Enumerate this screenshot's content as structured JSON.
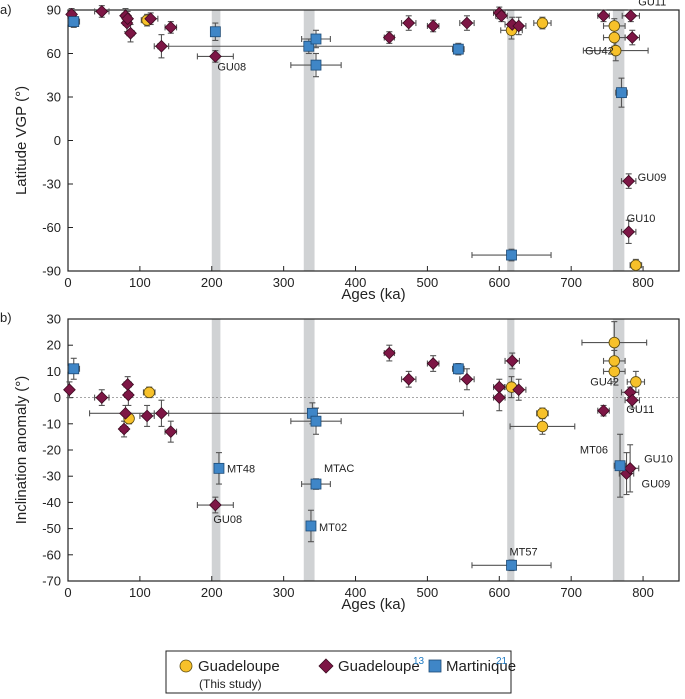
{
  "colors": {
    "guadeloupe_this": "#f7c12a",
    "guadeloupe_13": "#7d1645",
    "martinique": "#3f86c7",
    "errorbar": "#555555",
    "excursion_band": "#d0d2d4",
    "zero_line": "#888888"
  },
  "excursion_bands": [
    [
      200,
      212
    ],
    [
      328,
      343
    ],
    [
      611,
      621
    ],
    [
      758,
      774
    ]
  ],
  "legend": {
    "g_this": "Guadeloupe",
    "g_this_sub": "(This study)",
    "g13": "Guadeloupe",
    "g13_ref": "13",
    "mart": "Martinique",
    "mart_ref": "21"
  },
  "chart_data": [
    {
      "panel": "a)",
      "type": "scatter",
      "xlabel": "Ages (ka)",
      "ylabel": "Latitude VGP (°)",
      "xlim": [
        0,
        850
      ],
      "ylim": [
        -90,
        90
      ],
      "xticks": [
        0,
        100,
        200,
        300,
        400,
        500,
        600,
        700,
        800
      ],
      "yticks": [
        90,
        60,
        30,
        0,
        -30,
        -60,
        -90
      ],
      "series": [
        {
          "name": "Guadeloupe",
          "marker": "circle",
          "points": [
            {
              "x": 110,
              "y": 83,
              "xerr": 8,
              "yerr": 4
            },
            {
              "x": 617,
              "y": 76,
              "xerr": 15,
              "yerr": 6
            },
            {
              "x": 660,
              "y": 81,
              "xerr": 12,
              "yerr": 4
            },
            {
              "x": 760,
              "y": 79,
              "xerr": 15,
              "yerr": 5
            },
            {
              "x": 760,
              "y": 71,
              "xerr": 15,
              "yerr": 6
            },
            {
              "x": 762,
              "y": 62,
              "xerr": 45,
              "yerr": 7
            },
            {
              "x": 790,
              "y": -86,
              "xerr": 8,
              "yerr": 4
            }
          ]
        },
        {
          "name": "Guadeloupe",
          "marker": "diamond",
          "points": [
            {
              "x": 5,
              "y": 87,
              "xerr": 5,
              "yerr": 4
            },
            {
              "x": 47,
              "y": 89,
              "xerr": 10,
              "yerr": 4
            },
            {
              "x": 80,
              "y": 86,
              "xerr": 5,
              "yerr": 5
            },
            {
              "x": 82,
              "y": 81,
              "xerr": 5,
              "yerr": 6
            },
            {
              "x": 83,
              "y": 84,
              "xerr": 5,
              "yerr": 5
            },
            {
              "x": 87,
              "y": 74,
              "xerr": 5,
              "yerr": 6
            },
            {
              "x": 115,
              "y": 84,
              "xerr": 10,
              "yerr": 4
            },
            {
              "x": 130,
              "y": 65,
              "xerr": 10,
              "yerr": 8
            },
            {
              "x": 143,
              "y": 78,
              "xerr": 8,
              "yerr": 4
            },
            {
              "x": 205,
              "y": 58,
              "xerr": 25,
              "yerr": 4
            },
            {
              "x": 447,
              "y": 71,
              "xerr": 7,
              "yerr": 4
            },
            {
              "x": 474,
              "y": 81,
              "xerr": 10,
              "yerr": 5
            },
            {
              "x": 508,
              "y": 79,
              "xerr": 8,
              "yerr": 4
            },
            {
              "x": 555,
              "y": 81,
              "xerr": 10,
              "yerr": 5
            },
            {
              "x": 600,
              "y": 88,
              "xerr": 8,
              "yerr": 4
            },
            {
              "x": 603,
              "y": 86,
              "xerr": 8,
              "yerr": 4
            },
            {
              "x": 618,
              "y": 80,
              "xerr": 10,
              "yerr": 5
            },
            {
              "x": 627,
              "y": 79,
              "xerr": 10,
              "yerr": 6
            },
            {
              "x": 745,
              "y": 86,
              "xerr": 8,
              "yerr": 4
            },
            {
              "x": 780,
              "y": -28,
              "xerr": 10,
              "yerr": 5
            },
            {
              "x": 780,
              "y": -63,
              "xerr": 10,
              "yerr": 8
            },
            {
              "x": 783,
              "y": 86,
              "xerr": 12,
              "yerr": 4
            },
            {
              "x": 785,
              "y": 71,
              "xerr": 10,
              "yerr": 5
            }
          ]
        },
        {
          "name": "Martinique",
          "marker": "square",
          "points": [
            {
              "x": 8,
              "y": 82,
              "xerr": 8,
              "yerr": 4
            },
            {
              "x": 205,
              "y": 75,
              "xerr": 5,
              "yerr": 6
            },
            {
              "x": 335,
              "y": 65,
              "xerr": 210,
              "yerr": 5
            },
            {
              "x": 345,
              "y": 70,
              "xerr": 20,
              "yerr": 6
            },
            {
              "x": 345,
              "y": 52,
              "xerr": 35,
              "yerr": 8
            },
            {
              "x": 543,
              "y": 63,
              "xerr": 8,
              "yerr": 4
            },
            {
              "x": 617,
              "y": -79,
              "xerr": 55,
              "yerr": 4
            },
            {
              "x": 770,
              "y": 33,
              "xerr": 8,
              "yerr": 10
            }
          ]
        }
      ],
      "annotations": [
        {
          "text": "GU08",
          "x": 205,
          "y": 58
        },
        {
          "text": "GU11",
          "x": 785,
          "y": 71
        },
        {
          "text": "GU42",
          "x": 762,
          "y": 62
        },
        {
          "text": "GU09",
          "x": 780,
          "y": -28
        },
        {
          "text": "GU10",
          "x": 780,
          "y": -63
        }
      ]
    },
    {
      "panel": "b)",
      "type": "scatter",
      "xlabel": "Ages (ka)",
      "ylabel": "Inclination anomaly (°)",
      "xlim": [
        0,
        850
      ],
      "ylim": [
        -70,
        30
      ],
      "xticks": [
        0,
        100,
        200,
        300,
        400,
        500,
        600,
        700,
        800
      ],
      "yticks": [
        30,
        20,
        10,
        0,
        -10,
        -20,
        -30,
        -40,
        -50,
        -60,
        -70
      ],
      "series": [
        {
          "name": "Guadeloupe",
          "marker": "circle",
          "points": [
            {
              "x": 85,
              "y": -8,
              "xerr": 5,
              "yerr": 2
            },
            {
              "x": 113,
              "y": 2,
              "xerr": 8,
              "yerr": 2
            },
            {
              "x": 617,
              "y": 4,
              "xerr": 10,
              "yerr": 4
            },
            {
              "x": 660,
              "y": -6,
              "xerr": 8,
              "yerr": 2
            },
            {
              "x": 660,
              "y": -11,
              "xerr": 45,
              "yerr": 3
            },
            {
              "x": 760,
              "y": 21,
              "xerr": 45,
              "yerr": 8
            },
            {
              "x": 760,
              "y": 14,
              "xerr": 15,
              "yerr": 4
            },
            {
              "x": 760,
              "y": 10,
              "xerr": 15,
              "yerr": 4
            },
            {
              "x": 790,
              "y": 6,
              "xerr": 12,
              "yerr": 4
            }
          ]
        },
        {
          "name": "Guadeloupe",
          "marker": "diamond",
          "points": [
            {
              "x": 2,
              "y": 3,
              "xerr": 3,
              "yerr": 3
            },
            {
              "x": 47,
              "y": 0,
              "xerr": 10,
              "yerr": 3
            },
            {
              "x": 78,
              "y": -12,
              "xerr": 5,
              "yerr": 3
            },
            {
              "x": 80,
              "y": -6,
              "xerr": 50,
              "yerr": 3
            },
            {
              "x": 83,
              "y": 5,
              "xerr": 5,
              "yerr": 3
            },
            {
              "x": 84,
              "y": 1,
              "xerr": 5,
              "yerr": 4
            },
            {
              "x": 110,
              "y": -7,
              "xerr": 10,
              "yerr": 4
            },
            {
              "x": 130,
              "y": -6,
              "xerr": 10,
              "yerr": 5
            },
            {
              "x": 143,
              "y": -13,
              "xerr": 8,
              "yerr": 4
            },
            {
              "x": 205,
              "y": -41,
              "xerr": 25,
              "yerr": 3
            },
            {
              "x": 447,
              "y": 17,
              "xerr": 7,
              "yerr": 3
            },
            {
              "x": 474,
              "y": 7,
              "xerr": 10,
              "yerr": 3
            },
            {
              "x": 508,
              "y": 13,
              "xerr": 8,
              "yerr": 3
            },
            {
              "x": 555,
              "y": 7,
              "xerr": 10,
              "yerr": 4
            },
            {
              "x": 600,
              "y": 4,
              "xerr": 8,
              "yerr": 3
            },
            {
              "x": 600,
              "y": 0,
              "xerr": 8,
              "yerr": 5
            },
            {
              "x": 618,
              "y": 14,
              "xerr": 10,
              "yerr": 3
            },
            {
              "x": 627,
              "y": 3,
              "xerr": 10,
              "yerr": 4
            },
            {
              "x": 745,
              "y": -5,
              "xerr": 8,
              "yerr": 2
            },
            {
              "x": 782,
              "y": 2,
              "xerr": 12,
              "yerr": 2
            },
            {
              "x": 785,
              "y": -1,
              "xerr": 10,
              "yerr": 3
            },
            {
              "x": 777,
              "y": -29,
              "xerr": 10,
              "yerr": 8
            },
            {
              "x": 782,
              "y": -27,
              "xerr": 12,
              "yerr": 9
            }
          ]
        },
        {
          "name": "Martinique",
          "marker": "square",
          "points": [
            {
              "x": 8,
              "y": 11,
              "xerr": 8,
              "yerr": 4
            },
            {
              "x": 210,
              "y": -27,
              "xerr": 4,
              "yerr": 6
            },
            {
              "x": 338,
              "y": -49,
              "xerr": 4,
              "yerr": 6
            },
            {
              "x": 340,
              "y": -6,
              "xerr": 210,
              "yerr": 4
            },
            {
              "x": 345,
              "y": -9,
              "xerr": 35,
              "yerr": 5
            },
            {
              "x": 345,
              "y": -33,
              "xerr": 20,
              "yerr": 2
            },
            {
              "x": 543,
              "y": 11,
              "xerr": 8,
              "yerr": 2
            },
            {
              "x": 617,
              "y": -64,
              "xerr": 55,
              "yerr": 2
            },
            {
              "x": 768,
              "y": -26,
              "xerr": 8,
              "yerr": 12
            }
          ]
        }
      ],
      "annotations": [
        {
          "text": "MT48",
          "x": 210,
          "y": -27
        },
        {
          "text": "GU08",
          "x": 205,
          "y": -41
        },
        {
          "text": "MTAC",
          "x": 345,
          "y": -33
        },
        {
          "text": "MT02",
          "x": 338,
          "y": -49
        },
        {
          "text": "MT57",
          "x": 617,
          "y": -64
        },
        {
          "text": "GU42",
          "x": 760,
          "y": 10
        },
        {
          "text": "GU11",
          "x": 785,
          "y": -1
        },
        {
          "text": "MT06",
          "x": 768,
          "y": -26
        },
        {
          "text": "GU10",
          "x": 782,
          "y": -27
        },
        {
          "text": "GU09",
          "x": 777,
          "y": -29
        }
      ]
    }
  ]
}
